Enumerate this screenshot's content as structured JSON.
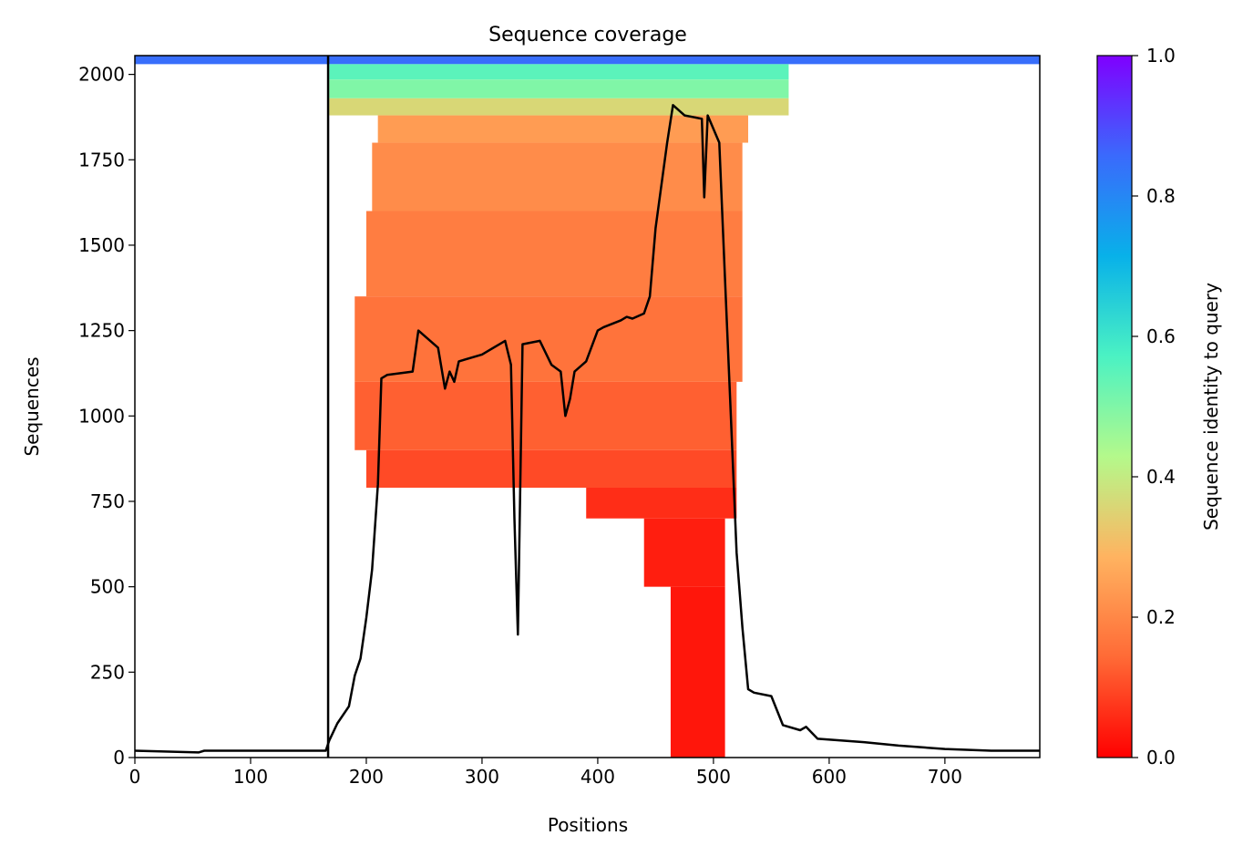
{
  "chart_data": {
    "type": "heatmap",
    "title": "Sequence coverage",
    "xlabel": "Positions",
    "ylabel": "Sequences",
    "xlim": [
      0,
      782
    ],
    "ylim": [
      0,
      2055
    ],
    "xticks": [
      0,
      100,
      200,
      300,
      400,
      500,
      600,
      700
    ],
    "yticks": [
      0,
      250,
      500,
      750,
      1000,
      1250,
      1500,
      1750,
      2000
    ],
    "colorbar": {
      "label": "Sequence identity to query",
      "range": [
        0,
        1
      ],
      "ticks": [
        0.0,
        0.2,
        0.4,
        0.6,
        0.8,
        1.0
      ],
      "tick_labels": [
        "0.0",
        "0.2",
        "0.4",
        "0.6",
        "0.8",
        "1.0"
      ],
      "colormap": [
        "#ff0000",
        "#ff6a36",
        "#ffb360",
        "#b4f98b",
        "#4bf2c3",
        "#08b1e9",
        "#3a6afc",
        "#7f00ff"
      ]
    },
    "query_boundary_x": 167,
    "coverage_blocks": [
      {
        "y_start": 2030,
        "y_end": 2055,
        "x_start": 0,
        "x_end": 782,
        "identity": 0.85
      },
      {
        "y_start": 1985,
        "y_end": 2030,
        "x_start": 168,
        "x_end": 565,
        "identity": 0.55
      },
      {
        "y_start": 1930,
        "y_end": 1985,
        "x_start": 168,
        "x_end": 565,
        "identity": 0.5
      },
      {
        "y_start": 1880,
        "y_end": 1930,
        "x_start": 168,
        "x_end": 565,
        "identity": 0.36
      },
      {
        "y_start": 1800,
        "y_end": 1880,
        "x_start": 210,
        "x_end": 530,
        "identity": 0.24
      },
      {
        "y_start": 1600,
        "y_end": 1800,
        "x_start": 205,
        "x_end": 525,
        "identity": 0.21
      },
      {
        "y_start": 1350,
        "y_end": 1600,
        "x_start": 200,
        "x_end": 525,
        "identity": 0.18
      },
      {
        "y_start": 1100,
        "y_end": 1350,
        "x_start": 190,
        "x_end": 525,
        "identity": 0.16
      },
      {
        "y_start": 900,
        "y_end": 1100,
        "x_start": 190,
        "x_end": 520,
        "identity": 0.13
      },
      {
        "y_start": 790,
        "y_end": 900,
        "x_start": 200,
        "x_end": 520,
        "identity": 0.1
      },
      {
        "y_start": 700,
        "y_end": 790,
        "x_start": 390,
        "x_end": 520,
        "identity": 0.06
      },
      {
        "y_start": 500,
        "y_end": 700,
        "x_start": 440,
        "x_end": 510,
        "identity": 0.04
      },
      {
        "y_start": 0,
        "y_end": 500,
        "x_start": 463,
        "x_end": 510,
        "identity": 0.03
      }
    ],
    "series": [
      {
        "type": "line",
        "color": "#000000",
        "x": [
          0,
          55,
          60,
          165,
          168,
          175,
          185,
          190,
          195,
          200,
          205,
          210,
          213,
          218,
          240,
          245,
          262,
          268,
          272,
          276,
          280,
          300,
          320,
          325,
          328,
          331,
          335,
          350,
          360,
          368,
          372,
          376,
          380,
          390,
          400,
          405,
          420,
          425,
          430,
          440,
          445,
          450,
          460,
          465,
          475,
          490,
          492,
          495,
          505,
          510,
          515,
          520,
          525,
          530,
          535,
          550,
          560,
          575,
          580,
          590,
          610,
          630,
          660,
          700,
          740,
          782
        ],
        "y": [
          20,
          15,
          20,
          20,
          50,
          100,
          150,
          240,
          290,
          410,
          550,
          800,
          1110,
          1120,
          1130,
          1250,
          1200,
          1080,
          1130,
          1100,
          1160,
          1180,
          1220,
          1150,
          700,
          360,
          1210,
          1220,
          1150,
          1130,
          1000,
          1050,
          1130,
          1160,
          1250,
          1260,
          1280,
          1290,
          1285,
          1300,
          1350,
          1550,
          1800,
          1910,
          1880,
          1870,
          1640,
          1880,
          1800,
          1400,
          1000,
          600,
          380,
          200,
          190,
          180,
          95,
          80,
          90,
          55,
          50,
          45,
          35,
          25,
          20,
          20
        ]
      }
    ]
  }
}
